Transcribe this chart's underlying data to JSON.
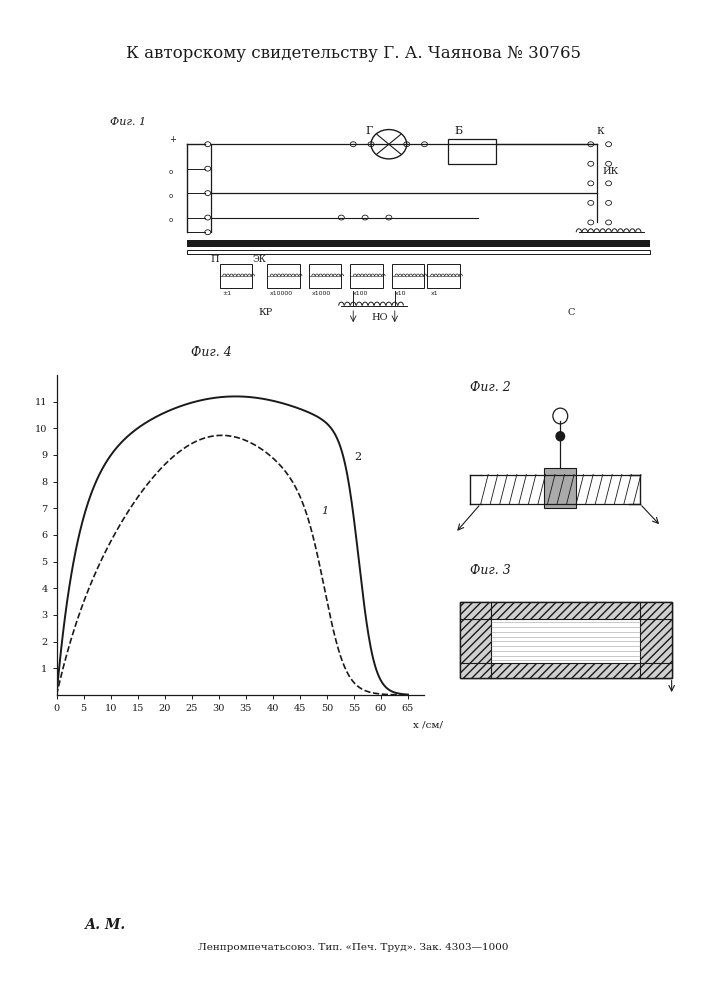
{
  "title": "К авторскому свидетельству Г. А. Чаянова № 30765",
  "fig4_label": "Фиг. 4",
  "fig2_label": "Фиг. 2",
  "fig3_label": "Фиг. 3",
  "fig1_label": "Фиг. 1",
  "xlabel": "x /см/",
  "xticks": [
    0,
    5,
    10,
    15,
    20,
    25,
    30,
    35,
    40,
    45,
    50,
    55,
    60,
    65
  ],
  "curve1_label": "1",
  "curve2_label": "2",
  "footer": "Ленпромпечатьсоюз. Тип. «Печ. Труд». Зак. 4303—1000",
  "am_label": "А. М.",
  "bg_color": "#ffffff",
  "line_color": "#1a1a1a"
}
